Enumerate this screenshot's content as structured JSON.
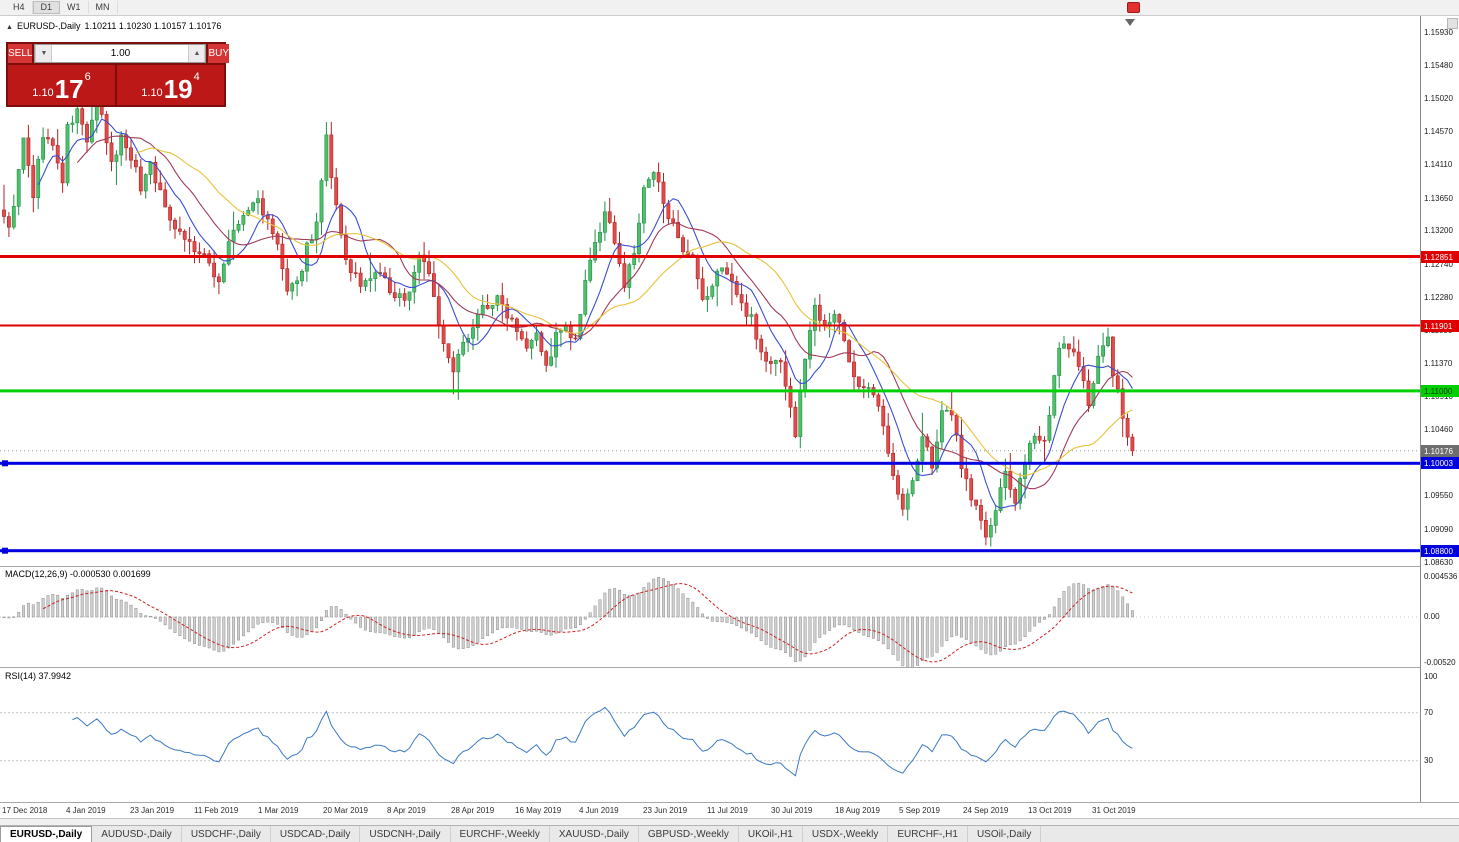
{
  "toolbar": {
    "timeframes": [
      "H4",
      "D1",
      "W1",
      "MN"
    ]
  },
  "chart": {
    "collapse_arrow": "▲",
    "symbol_title": "EURUSD-,Daily",
    "ohlc": "1.10211 1.10230 1.10157 1.10176"
  },
  "trade_panel": {
    "sell_label": "SELL",
    "buy_label": "BUY",
    "volume": "1.00",
    "volume_down_icon": "▼",
    "volume_up_icon": "▲",
    "sell_price": {
      "prefix": "1.10",
      "big": "17",
      "sup": "6"
    },
    "buy_price": {
      "prefix": "1.10",
      "big": "19",
      "sup": "4"
    }
  },
  "price_scale": {
    "ticks": [
      "1.15930",
      "1.15480",
      "1.15020",
      "1.14570",
      "1.14110",
      "1.13650",
      "1.13200",
      "1.12740",
      "1.12280",
      "1.11830",
      "1.11370",
      "1.10910",
      "1.10460",
      "1.09550",
      "1.09090",
      "1.08630"
    ],
    "tags": [
      {
        "price": 1.12851,
        "label": "1.12851",
        "bg": "#e00000",
        "fg": "#ffffff"
      },
      {
        "price": 1.11901,
        "label": "1.11901",
        "bg": "#e00000",
        "fg": "#ffffff"
      },
      {
        "price": 1.11,
        "label": "1.11000",
        "bg": "#00d000",
        "fg": "#003300"
      },
      {
        "price": 1.10176,
        "label": "1.10176",
        "bg": "#6e6e6e",
        "fg": "#ffffff"
      },
      {
        "price": 1.10003,
        "label": "1.10003",
        "bg": "#0000e0",
        "fg": "#ffffff"
      },
      {
        "price": 1.088,
        "label": "1.08800",
        "bg": "#0000e0",
        "fg": "#ffffff"
      }
    ]
  },
  "hlines": [
    {
      "price": 1.12851,
      "color": "#e00000",
      "thickness": 3,
      "handles": false
    },
    {
      "price": 1.11901,
      "color": "#e00000",
      "thickness": 2,
      "handles": false
    },
    {
      "price": 1.11,
      "color": "#00d000",
      "thickness": 3,
      "handles": false
    },
    {
      "price": 1.10003,
      "color": "#0000e0",
      "thickness": 3,
      "handles": true
    },
    {
      "price": 1.088,
      "color": "#0000e0",
      "thickness": 3,
      "handles": true
    }
  ],
  "macd": {
    "label": "MACD(12,26,9) -0.000530 0.001699",
    "scale": [
      {
        "label": "0.004536",
        "value": 0.004536
      },
      {
        "label": "0.00",
        "value": 0
      },
      {
        "label": "-0.00520",
        "value": -0.0052
      }
    ]
  },
  "rsi": {
    "label": "RSI(14) 37.9942",
    "levels": [
      {
        "label": "100",
        "value": 100
      },
      {
        "label": "70",
        "value": 70
      },
      {
        "label": "30",
        "value": 30
      }
    ]
  },
  "x_axis": [
    "17 Dec 2018",
    "4 Jan 2019",
    "23 Jan 2019",
    "11 Feb 2019",
    "1 Mar 2019",
    "20 Mar 2019",
    "8 Apr 2019",
    "28 Apr 2019",
    "16 May 2019",
    "4 Jun 2019",
    "23 Jun 2019",
    "11 Jul 2019",
    "30 Jul 2019",
    "18 Aug 2019",
    "5 Sep 2019",
    "24 Sep 2019",
    "13 Oct 2019",
    "31 Oct 2019"
  ],
  "tabs": {
    "active_index": 0,
    "items": [
      "EURUSD-,Daily",
      "AUDUSD-,Daily",
      "USDCHF-,Daily",
      "USDCAD-,Daily",
      "USDCNH-,Daily",
      "EURCHF-,Weekly",
      "XAUUSD-,Daily",
      "GBPUSD-,Weekly",
      "UKOil-,H1",
      "USDX-,Weekly",
      "EURCHF-,H1",
      "USOil-,Daily"
    ],
    "separator": "|"
  },
  "chart_data": {
    "type": "candlestick",
    "symbol": "EURUSD-",
    "timeframe": "Daily",
    "last_close": 1.10176,
    "total_bars": 232,
    "seed": 9,
    "visible_range": {
      "price_min": 1.0863,
      "price_max": 1.1593
    },
    "indicators": {
      "moving_averages": [
        {
          "period": 8,
          "color": "#3a4fd0"
        },
        {
          "period": 16,
          "color": "#a23a55"
        },
        {
          "period": 28,
          "color": "#e6c33c"
        }
      ],
      "macd": {
        "fast": 12,
        "slow": 26,
        "signal": 9
      },
      "rsi": {
        "period": 14
      }
    },
    "colors": {
      "up": "#4fc06a",
      "up_border": "#1f8f45",
      "down": "#e14b4b",
      "down_border": "#b22222",
      "macd_hist": "#d0d0d0",
      "macd_signal": "#d02020",
      "rsi": "#3b79c3"
    },
    "anchors": [
      [
        0,
        1.1345
      ],
      [
        1,
        1.132
      ],
      [
        3,
        1.14
      ],
      [
        4,
        1.1445
      ],
      [
        6,
        1.137
      ],
      [
        8,
        1.1455
      ],
      [
        10,
        1.1435
      ],
      [
        12,
        1.139
      ],
      [
        13,
        1.146
      ],
      [
        15,
        1.1485
      ],
      [
        17,
        1.1445
      ],
      [
        19,
        1.15
      ],
      [
        20,
        1.1475
      ],
      [
        22,
        1.141
      ],
      [
        24,
        1.145
      ],
      [
        26,
        1.1425
      ],
      [
        28,
        1.138
      ],
      [
        30,
        1.1415
      ],
      [
        33,
        1.135
      ],
      [
        36,
        1.132
      ],
      [
        39,
        1.1295
      ],
      [
        42,
        1.1275
      ],
      [
        44,
        1.125
      ],
      [
        46,
        1.1305
      ],
      [
        49,
        1.134
      ],
      [
        52,
        1.1365
      ],
      [
        54,
        1.133
      ],
      [
        56,
        1.13
      ],
      [
        58,
        1.1235
      ],
      [
        60,
        1.1245
      ],
      [
        62,
        1.13
      ],
      [
        64,
        1.133
      ],
      [
        66,
        1.1445
      ],
      [
        67,
        1.139
      ],
      [
        69,
        1.131
      ],
      [
        71,
        1.126
      ],
      [
        74,
        1.1245
      ],
      [
        77,
        1.1265
      ],
      [
        80,
        1.1225
      ],
      [
        83,
        1.1235
      ],
      [
        85,
        1.129
      ],
      [
        87,
        1.1265
      ],
      [
        90,
        1.116
      ],
      [
        92,
        1.1125
      ],
      [
        95,
        1.118
      ],
      [
        98,
        1.1215
      ],
      [
        101,
        1.1225
      ],
      [
        104,
        1.12
      ],
      [
        107,
        1.1165
      ],
      [
        109,
        1.1185
      ],
      [
        111,
        1.113
      ],
      [
        113,
        1.1175
      ],
      [
        115,
        1.1185
      ],
      [
        117,
        1.1165
      ],
      [
        119,
        1.1245
      ],
      [
        121,
        1.1305
      ],
      [
        123,
        1.134
      ],
      [
        125,
        1.131
      ],
      [
        127,
        1.1245
      ],
      [
        129,
        1.129
      ],
      [
        131,
        1.1375
      ],
      [
        133,
        1.14
      ],
      [
        135,
        1.1365
      ],
      [
        137,
        1.1325
      ],
      [
        139,
        1.1285
      ],
      [
        141,
        1.128
      ],
      [
        143,
        1.122
      ],
      [
        145,
        1.1245
      ],
      [
        147,
        1.1275
      ],
      [
        149,
        1.125
      ],
      [
        151,
        1.1215
      ],
      [
        153,
        1.1205
      ],
      [
        155,
        1.115
      ],
      [
        157,
        1.1135
      ],
      [
        159,
        1.1145
      ],
      [
        161,
        1.1075
      ],
      [
        162,
        1.104
      ],
      [
        164,
        1.115
      ],
      [
        166,
        1.1215
      ],
      [
        168,
        1.1195
      ],
      [
        170,
        1.1205
      ],
      [
        172,
        1.117
      ],
      [
        174,
        1.112
      ],
      [
        176,
        1.11
      ],
      [
        178,
        1.1095
      ],
      [
        180,
        1.105
      ],
      [
        182,
        1.099
      ],
      [
        184,
        1.0935
      ],
      [
        186,
        1.0975
      ],
      [
        188,
        1.1035
      ],
      [
        190,
        1.1
      ],
      [
        192,
        1.1065
      ],
      [
        194,
        1.107
      ],
      [
        196,
        1.1
      ],
      [
        198,
        1.0955
      ],
      [
        200,
        1.0925
      ],
      [
        201,
        1.0895
      ],
      [
        203,
        1.0935
      ],
      [
        205,
        1.0985
      ],
      [
        207,
        1.095
      ],
      [
        209,
        1.0995
      ],
      [
        211,
        1.1045
      ],
      [
        213,
        1.103
      ],
      [
        215,
        1.1115
      ],
      [
        216,
        1.1155
      ],
      [
        218,
        1.1165
      ],
      [
        220,
        1.113
      ],
      [
        222,
        1.1085
      ],
      [
        224,
        1.115
      ],
      [
        226,
        1.117
      ],
      [
        227,
        1.1125
      ],
      [
        229,
        1.1065
      ],
      [
        230,
        1.1035
      ],
      [
        231,
        1.10176
      ]
    ]
  }
}
